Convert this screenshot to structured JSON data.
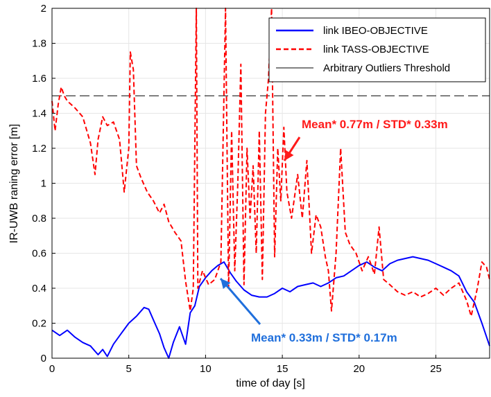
{
  "chart_data": {
    "type": "line",
    "xlabel": "time of day [s]",
    "ylabel": "IR-UWB raning error [m]",
    "xlim": [
      0,
      28.5
    ],
    "ylim": [
      0,
      2
    ],
    "xticks": [
      "0",
      "5",
      "10",
      "15",
      "20",
      "25"
    ],
    "yticks": [
      "0",
      "0.2",
      "0.4",
      "0.6",
      "0.8",
      "1",
      "1.2",
      "1.4",
      "1.6",
      "1.8",
      "2"
    ],
    "grid": true,
    "legend_position": "top-right",
    "threshold": {
      "name": "Arbitrary Outliers Threshold",
      "y": 1.5,
      "color": "#000000"
    },
    "series": [
      {
        "name": "link IBEO-OBJECTIVE",
        "color": "#0000ff",
        "style": "solid",
        "points": [
          [
            0,
            0.16
          ],
          [
            0.5,
            0.13
          ],
          [
            1.0,
            0.16
          ],
          [
            1.5,
            0.12
          ],
          [
            2.0,
            0.09
          ],
          [
            2.5,
            0.07
          ],
          [
            3.0,
            0.02
          ],
          [
            3.3,
            0.05
          ],
          [
            3.6,
            0.01
          ],
          [
            4.0,
            0.08
          ],
          [
            4.5,
            0.14
          ],
          [
            5.0,
            0.2
          ],
          [
            5.5,
            0.24
          ],
          [
            6.0,
            0.29
          ],
          [
            6.3,
            0.28
          ],
          [
            6.7,
            0.2
          ],
          [
            7.0,
            0.14
          ],
          [
            7.3,
            0.06
          ],
          [
            7.6,
            0.0
          ],
          [
            7.9,
            0.09
          ],
          [
            8.3,
            0.18
          ],
          [
            8.7,
            0.08
          ],
          [
            9.0,
            0.26
          ],
          [
            9.3,
            0.3
          ],
          [
            9.6,
            0.41
          ],
          [
            10.0,
            0.46
          ],
          [
            10.4,
            0.5
          ],
          [
            10.8,
            0.53
          ],
          [
            11.2,
            0.55
          ],
          [
            11.6,
            0.49
          ],
          [
            12.0,
            0.44
          ],
          [
            12.5,
            0.39
          ],
          [
            13.0,
            0.36
          ],
          [
            13.5,
            0.35
          ],
          [
            14.0,
            0.35
          ],
          [
            14.5,
            0.37
          ],
          [
            15.0,
            0.4
          ],
          [
            15.5,
            0.38
          ],
          [
            16.0,
            0.41
          ],
          [
            16.5,
            0.42
          ],
          [
            17.0,
            0.43
          ],
          [
            17.5,
            0.41
          ],
          [
            18.0,
            0.43
          ],
          [
            18.5,
            0.46
          ],
          [
            19.0,
            0.47
          ],
          [
            19.5,
            0.5
          ],
          [
            20.0,
            0.53
          ],
          [
            20.5,
            0.55
          ],
          [
            21.0,
            0.52
          ],
          [
            21.5,
            0.5
          ],
          [
            22.0,
            0.54
          ],
          [
            22.5,
            0.56
          ],
          [
            23.0,
            0.57
          ],
          [
            23.5,
            0.58
          ],
          [
            24.0,
            0.57
          ],
          [
            24.5,
            0.56
          ],
          [
            25.0,
            0.54
          ],
          [
            25.5,
            0.52
          ],
          [
            26.0,
            0.5
          ],
          [
            26.5,
            0.47
          ],
          [
            27.0,
            0.38
          ],
          [
            27.5,
            0.32
          ],
          [
            28.0,
            0.2
          ],
          [
            28.5,
            0.07
          ]
        ]
      },
      {
        "name": "link TASS-OBJECTIVE",
        "color": "#ff0000",
        "style": "dashed",
        "points": [
          [
            0,
            1.47
          ],
          [
            0.2,
            1.3
          ],
          [
            0.4,
            1.45
          ],
          [
            0.6,
            1.55
          ],
          [
            0.8,
            1.5
          ],
          [
            1.0,
            1.47
          ],
          [
            1.5,
            1.43
          ],
          [
            2.0,
            1.38
          ],
          [
            2.5,
            1.23
          ],
          [
            2.8,
            1.05
          ],
          [
            3.0,
            1.25
          ],
          [
            3.3,
            1.38
          ],
          [
            3.6,
            1.33
          ],
          [
            4.0,
            1.35
          ],
          [
            4.4,
            1.25
          ],
          [
            4.7,
            0.95
          ],
          [
            5.0,
            1.2
          ],
          [
            5.1,
            1.75
          ],
          [
            5.3,
            1.65
          ],
          [
            5.5,
            1.1
          ],
          [
            5.8,
            1.03
          ],
          [
            6.2,
            0.95
          ],
          [
            6.6,
            0.9
          ],
          [
            7.0,
            0.83
          ],
          [
            7.3,
            0.88
          ],
          [
            7.6,
            0.78
          ],
          [
            8.0,
            0.72
          ],
          [
            8.4,
            0.67
          ],
          [
            8.7,
            0.44
          ],
          [
            9.0,
            0.27
          ],
          [
            9.2,
            0.4
          ],
          [
            9.4,
            2.0
          ],
          [
            9.5,
            0.4
          ],
          [
            9.8,
            0.5
          ],
          [
            10.2,
            0.42
          ],
          [
            10.6,
            0.45
          ],
          [
            11.0,
            0.55
          ],
          [
            11.3,
            2.0
          ],
          [
            11.5,
            0.4
          ],
          [
            11.7,
            1.3
          ],
          [
            11.9,
            0.5
          ],
          [
            12.1,
            1.0
          ],
          [
            12.3,
            1.68
          ],
          [
            12.5,
            0.42
          ],
          [
            12.7,
            1.2
          ],
          [
            12.9,
            0.8
          ],
          [
            13.1,
            1.1
          ],
          [
            13.3,
            0.6
          ],
          [
            13.5,
            1.3
          ],
          [
            13.7,
            0.45
          ],
          [
            13.9,
            1.4
          ],
          [
            14.1,
            1.6
          ],
          [
            14.3,
            2.0
          ],
          [
            14.5,
            0.58
          ],
          [
            14.7,
            1.2
          ],
          [
            14.9,
            0.9
          ],
          [
            15.1,
            1.32
          ],
          [
            15.3,
            0.95
          ],
          [
            15.6,
            0.8
          ],
          [
            16.0,
            1.05
          ],
          [
            16.3,
            0.8
          ],
          [
            16.6,
            1.13
          ],
          [
            16.9,
            0.6
          ],
          [
            17.2,
            0.82
          ],
          [
            17.5,
            0.75
          ],
          [
            17.8,
            0.58
          ],
          [
            18.0,
            0.5
          ],
          [
            18.2,
            0.27
          ],
          [
            18.5,
            0.6
          ],
          [
            18.8,
            1.2
          ],
          [
            19.1,
            0.72
          ],
          [
            19.4,
            0.65
          ],
          [
            19.8,
            0.6
          ],
          [
            20.2,
            0.5
          ],
          [
            20.6,
            0.58
          ],
          [
            21.0,
            0.48
          ],
          [
            21.3,
            0.75
          ],
          [
            21.6,
            0.45
          ],
          [
            22.0,
            0.42
          ],
          [
            22.5,
            0.38
          ],
          [
            23.0,
            0.36
          ],
          [
            23.5,
            0.38
          ],
          [
            24.0,
            0.35
          ],
          [
            24.5,
            0.37
          ],
          [
            25.0,
            0.4
          ],
          [
            25.5,
            0.36
          ],
          [
            26.0,
            0.4
          ],
          [
            26.5,
            0.43
          ],
          [
            27.0,
            0.33
          ],
          [
            27.3,
            0.24
          ],
          [
            27.7,
            0.4
          ],
          [
            28.0,
            0.55
          ],
          [
            28.3,
            0.52
          ],
          [
            28.5,
            0.45
          ]
        ]
      }
    ],
    "annotations": [
      {
        "text": "Mean* 0.77m / STD* 0.33m",
        "color": "#ff1a1a",
        "arrow_to": [
          15.2,
          1.1
        ]
      },
      {
        "text": "Mean* 0.33m / STD* 0.17m",
        "color": "#1f6fdc",
        "arrow_to": [
          10.3,
          0.5
        ]
      }
    ]
  }
}
